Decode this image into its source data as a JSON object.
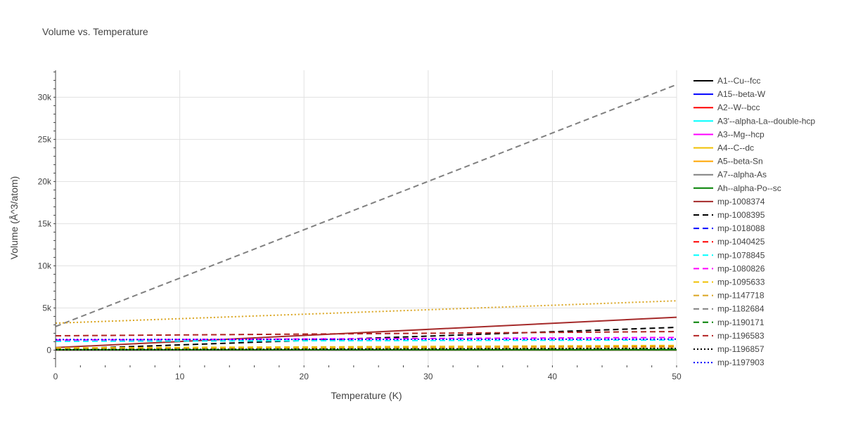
{
  "chart_data": {
    "type": "line",
    "title": "Volume vs. Temperature",
    "xlabel": "Temperature (K)",
    "ylabel": "Volume (Å^3/atom)",
    "xlim": [
      0,
      50
    ],
    "ylim": [
      -1800,
      33200
    ],
    "x_ticks": [
      0,
      10,
      20,
      30,
      40,
      50
    ],
    "x_tick_labels": [
      "0",
      "10",
      "20",
      "30",
      "40",
      "50"
    ],
    "y_ticks": [
      0,
      5000,
      10000,
      15000,
      20000,
      25000,
      30000
    ],
    "y_tick_labels": [
      "0",
      "5k",
      "10k",
      "15k",
      "20k",
      "25k",
      "30k"
    ],
    "grid": true,
    "legend_position": "right",
    "series": [
      {
        "name": "A1--Cu--fcc",
        "color": "#000000",
        "dash": "solid",
        "x": [
          0,
          50
        ],
        "y": [
          12,
          14
        ]
      },
      {
        "name": "A15--beta-W",
        "color": "#0000ff",
        "dash": "solid",
        "x": [
          0,
          50
        ],
        "y": [
          16,
          19
        ]
      },
      {
        "name": "A2--W--bcc",
        "color": "#ff0000",
        "dash": "solid",
        "x": [
          0,
          50
        ],
        "y": [
          22,
          26
        ]
      },
      {
        "name": "A3'--alpha-La--double-hcp",
        "color": "#00ffff",
        "dash": "solid",
        "x": [
          0,
          50
        ],
        "y": [
          30,
          35
        ]
      },
      {
        "name": "A3--Mg--hcp",
        "color": "#ff00ff",
        "dash": "solid",
        "x": [
          0,
          50
        ],
        "y": [
          25,
          30
        ]
      },
      {
        "name": "A4--C--dc",
        "color": "#f0c000",
        "dash": "solid",
        "x": [
          0,
          50
        ],
        "y": [
          20,
          24
        ]
      },
      {
        "name": "A5--beta-Sn",
        "color": "#ffa500",
        "dash": "solid",
        "x": [
          0,
          50
        ],
        "y": [
          28,
          33
        ]
      },
      {
        "name": "A7--alpha-As",
        "color": "#808080",
        "dash": "solid",
        "x": [
          0,
          50
        ],
        "y": [
          35,
          40
        ]
      },
      {
        "name": "Ah--alpha-Po--sc",
        "color": "#008000",
        "dash": "solid",
        "x": [
          0,
          50
        ],
        "y": [
          40,
          45
        ]
      },
      {
        "name": "mp-1008374",
        "color": "#a52a2a",
        "dash": "solid",
        "x": [
          0,
          50
        ],
        "y": [
          300,
          3900
        ]
      },
      {
        "name": "mp-1008395",
        "color": "#000000",
        "dash": "dash",
        "x": [
          0,
          50
        ],
        "y": [
          100,
          2700
        ]
      },
      {
        "name": "mp-1018088",
        "color": "#0000ff",
        "dash": "dash",
        "x": [
          0,
          50
        ],
        "y": [
          200,
          450
        ]
      },
      {
        "name": "mp-1040425",
        "color": "#ff0000",
        "dash": "dash",
        "x": [
          0,
          50
        ],
        "y": [
          180,
          500
        ]
      },
      {
        "name": "mp-1078845",
        "color": "#00ffff",
        "dash": "dash",
        "x": [
          0,
          50
        ],
        "y": [
          1050,
          1200
        ]
      },
      {
        "name": "mp-1080826",
        "color": "#ff00ff",
        "dash": "dash",
        "x": [
          0,
          50
        ],
        "y": [
          1200,
          1500
        ]
      },
      {
        "name": "mp-1095633",
        "color": "#f0c000",
        "dash": "dash",
        "x": [
          0,
          50
        ],
        "y": [
          260,
          550
        ]
      },
      {
        "name": "mp-1147718",
        "color": "#daa520",
        "dash": "dash",
        "x": [
          0,
          50
        ],
        "y": [
          150,
          350
        ]
      },
      {
        "name": "mp-1182684",
        "color": "#808080",
        "dash": "dash",
        "x": [
          0,
          50
        ],
        "y": [
          2800,
          31500
        ]
      },
      {
        "name": "mp-1190171",
        "color": "#008000",
        "dash": "dash",
        "x": [
          0,
          50
        ],
        "y": [
          60,
          130
        ]
      },
      {
        "name": "mp-1196583",
        "color": "#b22222",
        "dash": "dash",
        "x": [
          0,
          50
        ],
        "y": [
          1700,
          2200
        ]
      },
      {
        "name": "mp-1196857",
        "color": "#000000",
        "dash": "dot",
        "x": [
          0,
          50
        ],
        "y": [
          50,
          200
        ]
      },
      {
        "name": "mp-1197903",
        "color": "#0000ff",
        "dash": "dot",
        "x": [
          0,
          50
        ],
        "y": [
          1250,
          1300
        ]
      },
      {
        "name": "",
        "color": "#daa520",
        "dash": "dot",
        "x": [
          0,
          50
        ],
        "y": [
          3200,
          5850
        ]
      }
    ]
  }
}
